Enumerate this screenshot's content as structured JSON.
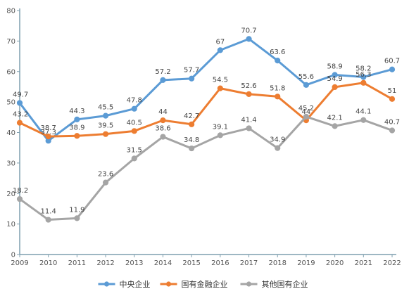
{
  "chart_data": {
    "type": "line",
    "title": "",
    "xlabel": "",
    "ylabel": "",
    "categories": [
      "2009",
      "2010",
      "2011",
      "2012",
      "2013",
      "2014",
      "2015",
      "2016",
      "2017",
      "2018",
      "2019",
      "2020",
      "2021",
      "2022"
    ],
    "ylim": [
      0,
      80
    ],
    "yticks": [
      0,
      10,
      20,
      30,
      40,
      50,
      60,
      70,
      80
    ],
    "grid": false,
    "legend_position": "bottom",
    "series": [
      {
        "name": "中央企业",
        "color": "#5b9bd5",
        "values": [
          49.7,
          37.3,
          44.3,
          45.5,
          47.8,
          57.2,
          57.7,
          67,
          70.7,
          63.6,
          55.6,
          58.9,
          58.2,
          60.7
        ],
        "labels": [
          "49.7",
          "37.3",
          "44.3",
          "45.5",
          "47.8",
          "57.2",
          "57.7",
          "67",
          "70.7",
          "63.6",
          "55.6",
          "58.9",
          "58.2",
          "60.7"
        ]
      },
      {
        "name": "国有金融企业",
        "color": "#ed7d31",
        "values": [
          43.2,
          38.7,
          38.9,
          39.5,
          40.5,
          44,
          42.7,
          54.5,
          52.6,
          51.8,
          44,
          54.9,
          56.3,
          51
        ],
        "labels": [
          "43.2",
          "38.7",
          "38.9",
          "39.5",
          "40.5",
          "44",
          "42.7",
          "54.5",
          "52.6",
          "51.8",
          "44",
          "54.9",
          "56.3",
          "51"
        ]
      },
      {
        "name": "其他国有企业",
        "color": "#a5a5a5",
        "values": [
          18.2,
          11.4,
          11.9,
          23.6,
          31.5,
          38.6,
          34.8,
          39.1,
          41.4,
          34.9,
          45.2,
          42.1,
          44.1,
          40.7
        ],
        "labels": [
          "18.2",
          "11.4",
          "11.9",
          "23.6",
          "31.5",
          "38.6",
          "34.8",
          "39.1",
          "41.4",
          "34.9",
          "45.2",
          "42.1",
          "44.1",
          "40.7"
        ]
      }
    ]
  }
}
